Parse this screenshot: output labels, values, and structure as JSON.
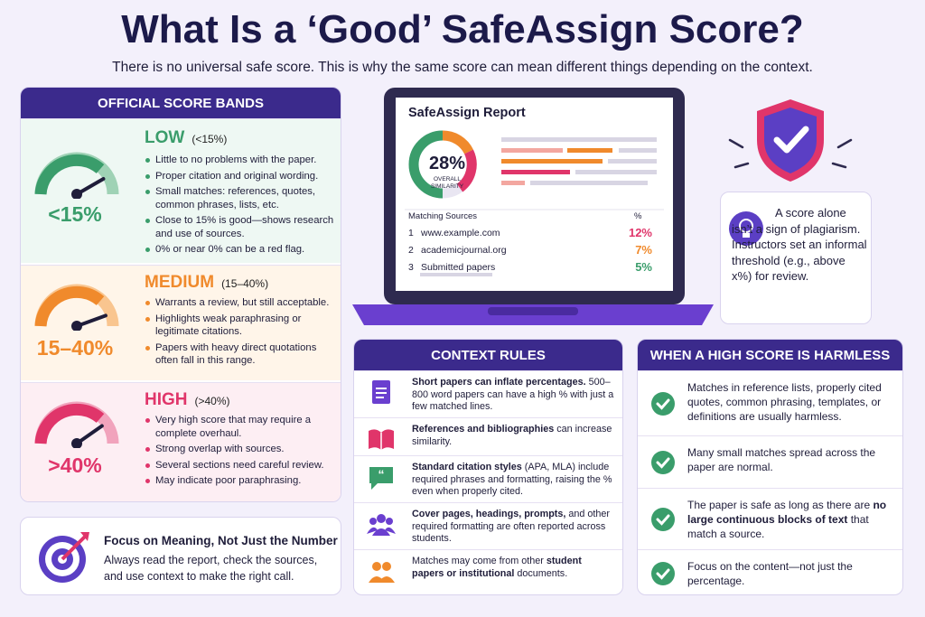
{
  "header": {
    "title": "What Is a ‘Good’ SafeAssign Score?",
    "subtitle": "There is no universal safe score. This is why the same score can mean different things depending on the context."
  },
  "score_bands": {
    "title": "OFFICIAL SCORE BANDS",
    "bands": [
      {
        "gauge_label": "<15%",
        "name": "LOW",
        "range": "(<15%)",
        "points": [
          "Little to no problems with the paper.",
          "Proper citation and original wording.",
          "Small matches: references, quotes, common phrases, lists, etc.",
          "Close to 15% is good—shows research and use of sources.",
          "0% or near 0% can be a red flag."
        ]
      },
      {
        "gauge_label": "15–40%",
        "name": "MEDIUM",
        "range": "(15–40%)",
        "points": [
          "Warrants a review, but still acceptable.",
          "Highlights weak paraphrasing or legitimate citations.",
          "Papers with heavy direct quotations often fall in this range."
        ]
      },
      {
        "gauge_label": ">40%",
        "name": "HIGH",
        "range": "(>40%)",
        "points": [
          "Very high score that may require a complete overhaul.",
          "Strong overlap with sources.",
          "Several sections need careful review.",
          "May indicate poor paraphrasing."
        ]
      }
    ]
  },
  "focus": {
    "title": "Focus on Meaning, Not Just the Number",
    "text": "Always read the report, check the sources, and use context to make the right call."
  },
  "report": {
    "title": "SafeAssign Report",
    "score": "28%",
    "score_caption": "OVERALL SIMILARITY",
    "sources_header": "Matching Sources",
    "percent_header": "%",
    "sources": [
      {
        "index": "1",
        "name": "www.example.com",
        "percent": "12%"
      },
      {
        "index": "2",
        "name": "academicjournal.org",
        "percent": "7%"
      },
      {
        "index": "3",
        "name": "Submitted papers",
        "percent": "5%"
      }
    ]
  },
  "note": {
    "text": "A score alone isn’t a sign of plagiarism. Instructors set an informal threshold (e.g., above x%) for review."
  },
  "context_rules": {
    "title": "CONTEXT RULES",
    "items": [
      {
        "bold": "Short papers can inflate percentages.",
        "after": " 500–800 word papers can have a high % with just a few matched lines."
      },
      {
        "bold": "References and bibliographies",
        "after": " can increase similarity."
      },
      {
        "bold": "Standard citation styles",
        "after": " (APA, MLA) include required phrases and formatting, raising the % even when properly cited."
      },
      {
        "bold": "Cover pages, headings, prompts,",
        "after": " and other required formatting are often reported across students."
      },
      {
        "before": "Matches may come from other ",
        "bold": "student papers or institutional",
        "after": " documents."
      }
    ]
  },
  "harmless": {
    "title": "WHEN A HIGH SCORE IS HARMLESS",
    "items": [
      {
        "before": "Matches in reference lists, properly cited quotes, common phrasing, templates, or definitions are usually harmless."
      },
      {
        "before": "Many small matches spread across the paper are normal."
      },
      {
        "before": "The paper is safe as long as there are ",
        "bold": "no large continuous blocks of text",
        "after": " that match a source."
      },
      {
        "before": "Focus on the content—not just the percentage."
      }
    ]
  }
}
